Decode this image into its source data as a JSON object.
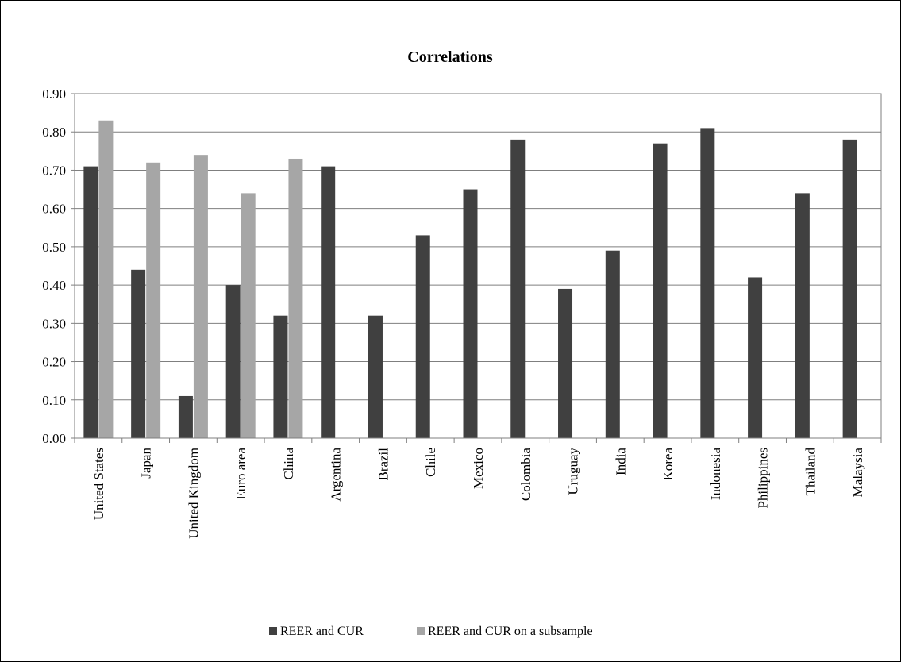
{
  "chart_data": {
    "type": "bar",
    "title": "Correlations",
    "xlabel": "",
    "ylabel": "",
    "ylim": [
      0,
      0.9
    ],
    "yticks": [
      "0.00",
      "0.10",
      "0.20",
      "0.30",
      "0.40",
      "0.50",
      "0.60",
      "0.70",
      "0.80",
      "0.90"
    ],
    "grid": true,
    "legend_position": "bottom",
    "categories": [
      "United States",
      "Japan",
      "United Kingdom",
      "Euro area",
      "China",
      "Argentina",
      "Brazil",
      "Chile",
      "Mexico",
      "Colombia",
      "Uruguay",
      "India",
      "Korea",
      "Indonesia",
      "Philippines",
      "Thailand",
      "Malaysia"
    ],
    "series": [
      {
        "name": "REER and CUR",
        "color": "#404040",
        "values": [
          0.71,
          0.44,
          0.11,
          0.4,
          0.32,
          0.71,
          0.32,
          0.53,
          0.65,
          0.78,
          0.39,
          0.49,
          0.77,
          0.81,
          0.42,
          0.64,
          0.78
        ]
      },
      {
        "name": "REER and CUR on a subsample",
        "color": "#a6a6a6",
        "values": [
          0.83,
          0.72,
          0.74,
          0.64,
          0.73,
          null,
          null,
          null,
          null,
          null,
          null,
          null,
          null,
          null,
          null,
          null,
          null
        ]
      }
    ]
  }
}
